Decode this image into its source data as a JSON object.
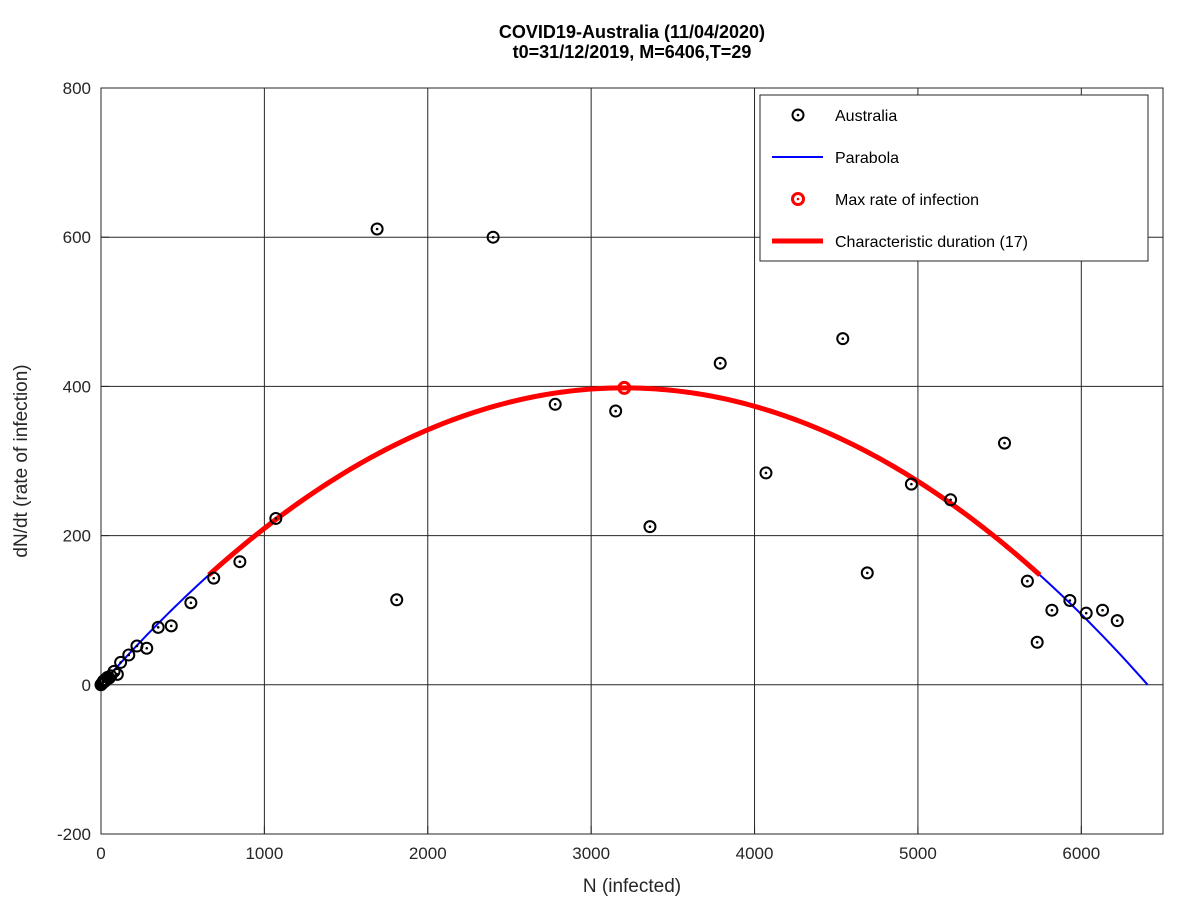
{
  "chart_data": {
    "type": "scatter",
    "title": "COVID19-Australia (11/04/2020)",
    "subtitle": "t0=31/12/2019, M=6406,T=29",
    "xlabel": "N (infected)",
    "ylabel": "dN/dt (rate of infection)",
    "xlim": [
      0,
      6500
    ],
    "ylim": [
      -200,
      800
    ],
    "xticks": [
      0,
      1000,
      2000,
      3000,
      4000,
      5000,
      6000
    ],
    "yticks": [
      -200,
      0,
      200,
      400,
      600,
      800
    ],
    "grid": true,
    "legend_position": "top-right",
    "colors": {
      "points": "#000000",
      "parabola": "#0000ff",
      "max": "#ff0000",
      "duration": "#ff0000"
    },
    "series": [
      {
        "name": "Australia",
        "kind": "points",
        "points": [
          [
            0,
            0
          ],
          [
            3,
            1
          ],
          [
            8,
            2
          ],
          [
            12,
            3
          ],
          [
            15,
            5
          ],
          [
            20,
            4
          ],
          [
            25,
            7
          ],
          [
            30,
            6
          ],
          [
            40,
            10
          ],
          [
            50,
            9
          ],
          [
            60,
            12
          ],
          [
            80,
            18
          ],
          [
            100,
            14
          ],
          [
            120,
            30
          ],
          [
            170,
            40
          ],
          [
            220,
            52
          ],
          [
            280,
            49
          ],
          [
            350,
            77
          ],
          [
            430,
            79
          ],
          [
            550,
            110
          ],
          [
            690,
            143
          ],
          [
            850,
            165
          ],
          [
            1070,
            223
          ],
          [
            1690,
            611
          ],
          [
            1810,
            114
          ],
          [
            2400,
            600
          ],
          [
            2780,
            376
          ],
          [
            3150,
            367
          ],
          [
            3360,
            212
          ],
          [
            3790,
            431
          ],
          [
            4070,
            284
          ],
          [
            4540,
            464
          ],
          [
            4690,
            150
          ],
          [
            4960,
            269
          ],
          [
            5200,
            248
          ],
          [
            5530,
            324
          ],
          [
            5670,
            139
          ],
          [
            5730,
            57
          ],
          [
            5820,
            100
          ],
          [
            5930,
            113
          ],
          [
            6030,
            96
          ],
          [
            6130,
            100
          ],
          [
            6220,
            86
          ]
        ]
      },
      {
        "name": "Parabola",
        "kind": "curve",
        "M": 6406,
        "peak": 398,
        "x_range": [
          0,
          6406
        ]
      },
      {
        "name": "Max rate of infection",
        "kind": "point",
        "x": 3203,
        "y": 398
      },
      {
        "name": "Characteristic duration (17)",
        "kind": "curve",
        "M": 6406,
        "peak": 398,
        "x_range": [
          660,
          5746
        ]
      }
    ]
  }
}
